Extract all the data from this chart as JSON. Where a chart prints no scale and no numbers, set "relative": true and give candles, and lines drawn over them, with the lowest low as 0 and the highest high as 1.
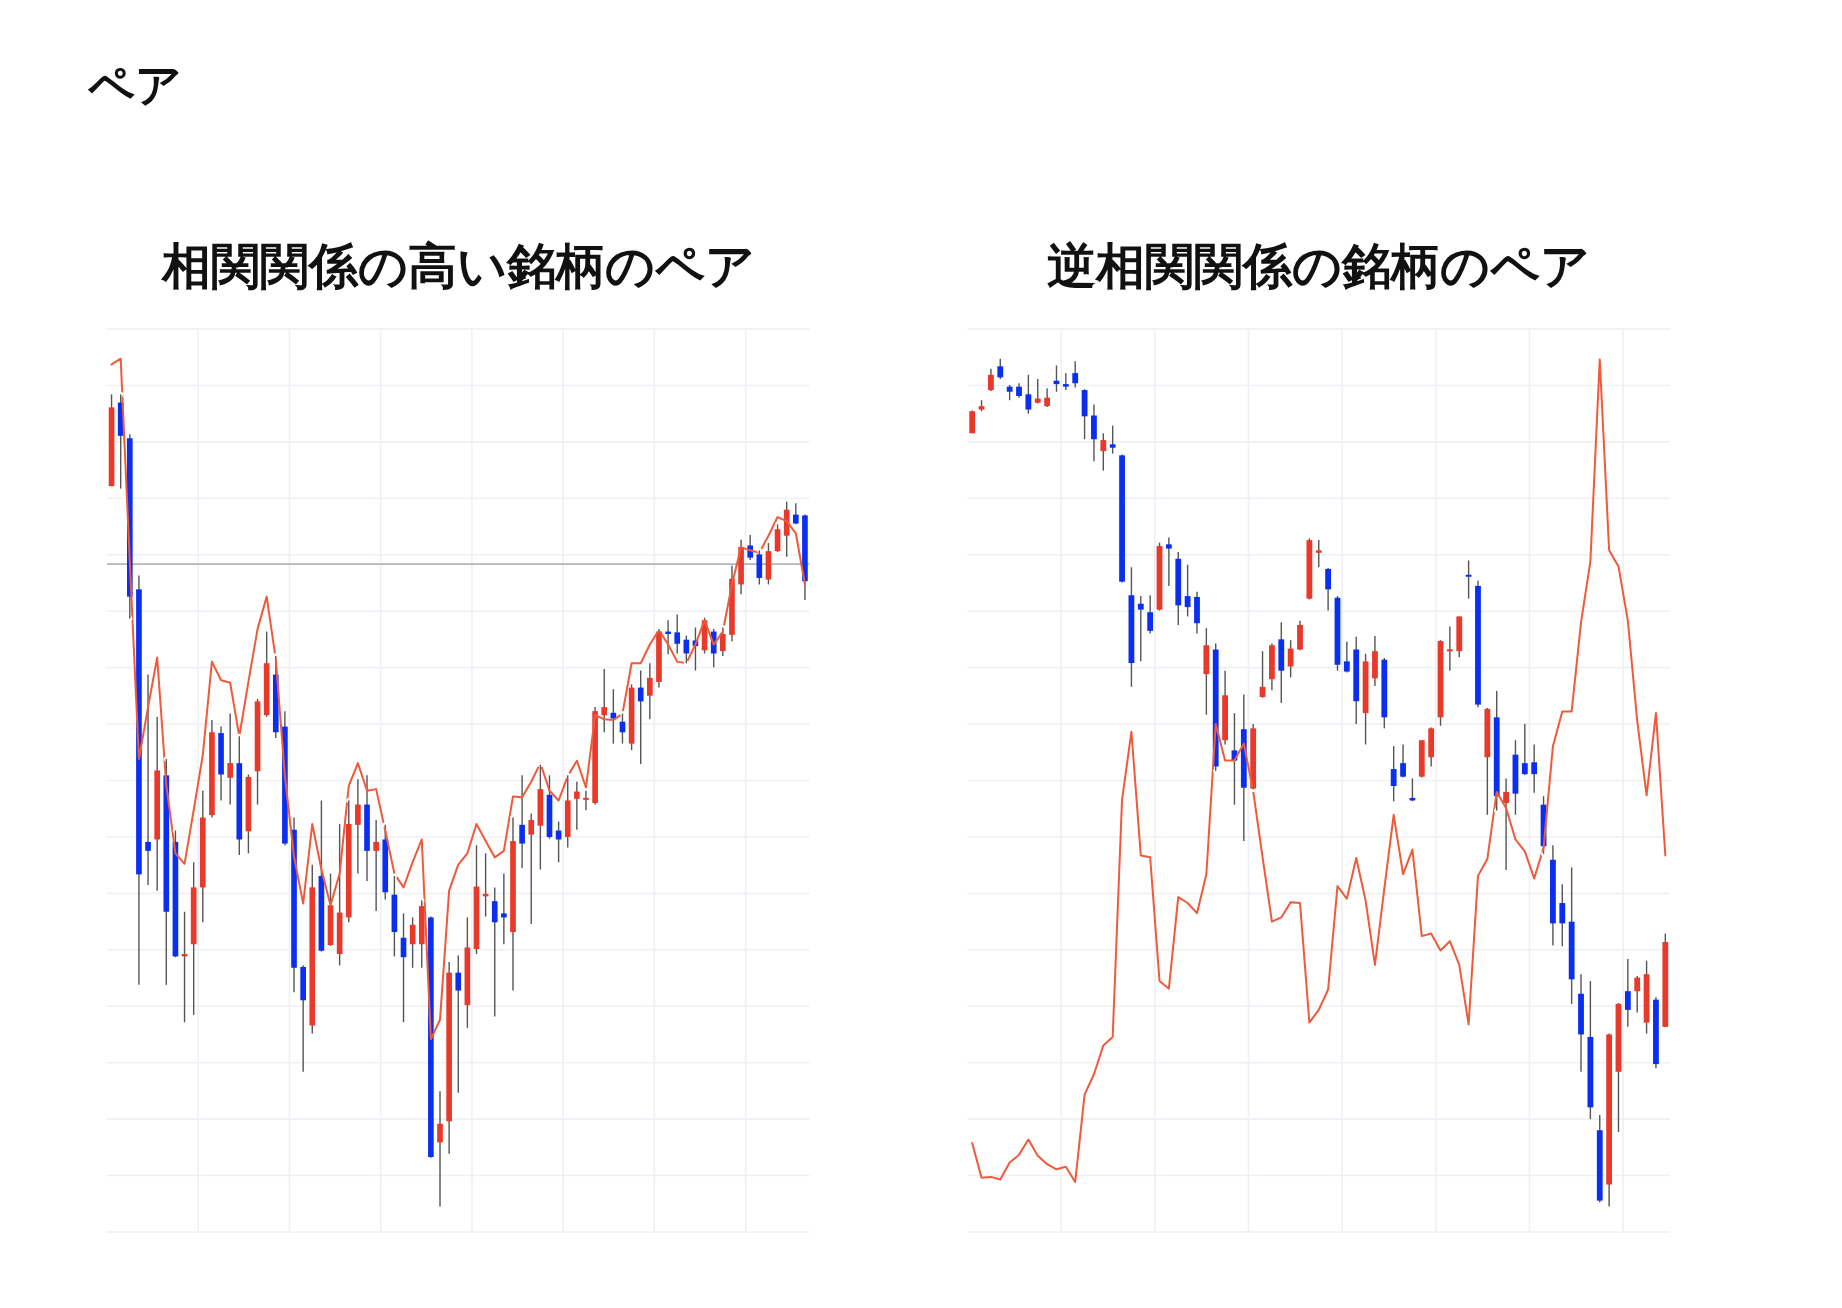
{
  "chart_data": [
    {
      "type": "other",
      "title": "ペア"
    },
    {
      "type": "candlestick",
      "title": "相関関係の高い銘柄のペア",
      "relative": true,
      "grid": true,
      "categories": [
        null,
        null,
        null,
        null,
        null,
        null,
        null,
        null,
        null,
        null,
        null,
        null,
        null,
        null,
        null,
        null,
        null,
        null,
        null,
        null,
        null,
        null,
        null,
        null,
        null,
        null,
        null,
        null,
        null,
        null,
        null,
        null,
        null,
        null,
        null,
        null,
        null,
        null,
        null,
        null,
        null,
        null,
        null,
        null,
        null,
        null,
        null,
        null,
        null,
        null,
        null,
        null,
        null,
        null,
        null,
        null,
        null,
        null,
        null,
        null,
        null,
        null,
        null,
        null,
        null,
        null,
        null,
        null,
        null,
        null,
        null,
        null,
        null,
        null,
        null,
        null,
        null
      ],
      "ohlc": [
        [
          0.887,
          1.0,
          0.887,
          0.984
        ],
        [
          0.99,
          1.0,
          0.884,
          0.949
        ],
        [
          0.946,
          0.951,
          0.724,
          0.751
        ],
        [
          0.76,
          0.777,
          0.273,
          0.409
        ],
        [
          0.449,
          0.655,
          0.396,
          0.438
        ],
        [
          0.452,
          0.603,
          0.389,
          0.537
        ],
        [
          0.531,
          0.551,
          0.273,
          0.363
        ],
        [
          0.449,
          0.463,
          0.307,
          0.308
        ],
        [
          0.308,
          0.363,
          0.227,
          0.311
        ],
        [
          0.323,
          0.424,
          0.236,
          0.393
        ],
        [
          0.393,
          0.512,
          0.35,
          0.479
        ],
        [
          0.482,
          0.599,
          0.479,
          0.584
        ],
        [
          0.583,
          0.591,
          0.5,
          0.532
        ],
        [
          0.528,
          0.607,
          0.495,
          0.546
        ],
        [
          0.546,
          0.579,
          0.433,
          0.452
        ],
        [
          0.462,
          0.532,
          0.435,
          0.529
        ],
        [
          0.536,
          0.625,
          0.495,
          0.622
        ],
        [
          0.605,
          0.708,
          0.603,
          0.669
        ],
        [
          0.655,
          0.678,
          0.577,
          0.584
        ],
        [
          0.591,
          0.61,
          0.445,
          0.447
        ],
        [
          0.464,
          0.479,
          0.264,
          0.294
        ],
        [
          0.295,
          0.297,
          0.166,
          0.254
        ],
        [
          0.223,
          0.421,
          0.213,
          0.393
        ],
        [
          0.407,
          0.5,
          0.314,
          0.315
        ],
        [
          0.322,
          0.41,
          0.321,
          0.371
        ],
        [
          0.311,
          0.471,
          0.297,
          0.362
        ],
        [
          0.356,
          0.5,
          0.35,
          0.471
        ],
        [
          0.47,
          0.526,
          0.41,
          0.495
        ],
        [
          0.495,
          0.531,
          0.401,
          0.438
        ],
        [
          0.438,
          0.476,
          0.364,
          0.449
        ],
        [
          0.452,
          0.47,
          0.378,
          0.387
        ],
        [
          0.384,
          0.407,
          0.308,
          0.338
        ],
        [
          0.331,
          0.361,
          0.227,
          0.307
        ],
        [
          0.323,
          0.356,
          0.294,
          0.347
        ],
        [
          0.323,
          0.377,
          0.294,
          0.37
        ],
        [
          0.356,
          0.357,
          0.06,
          0.061
        ],
        [
          0.079,
          0.142,
          0.0,
          0.102
        ],
        [
          0.105,
          0.301,
          0.065,
          0.288
        ],
        [
          0.288,
          0.309,
          0.14,
          0.266
        ],
        [
          0.248,
          0.356,
          0.22,
          0.319
        ],
        [
          0.317,
          0.445,
          0.311,
          0.394
        ],
        [
          0.382,
          0.435,
          0.357,
          0.385
        ],
        [
          0.376,
          0.393,
          0.234,
          0.35
        ],
        [
          0.361,
          0.41,
          0.323,
          0.356
        ],
        [
          0.338,
          0.479,
          0.266,
          0.45
        ],
        [
          0.47,
          0.531,
          0.417,
          0.447
        ],
        [
          0.458,
          0.484,
          0.348,
          0.476
        ],
        [
          0.469,
          0.544,
          0.415,
          0.514
        ],
        [
          0.507,
          0.531,
          0.453,
          0.455
        ],
        [
          0.463,
          0.474,
          0.424,
          0.452
        ],
        [
          0.455,
          0.531,
          0.442,
          0.5
        ],
        [
          0.502,
          0.523,
          0.464,
          0.511
        ],
        [
          0.501,
          0.512,
          0.488,
          0.503
        ],
        [
          0.497,
          0.615,
          0.495,
          0.61
        ],
        [
          0.605,
          0.662,
          0.584,
          0.615
        ],
        [
          0.608,
          0.637,
          0.57,
          0.601
        ],
        [
          0.597,
          0.607,
          0.57,
          0.584
        ],
        [
          0.57,
          0.643,
          0.562,
          0.639
        ],
        [
          0.639,
          0.66,
          0.545,
          0.622
        ],
        [
          0.629,
          0.669,
          0.6,
          0.651
        ],
        [
          0.646,
          0.711,
          0.639,
          0.708
        ],
        [
          0.708,
          0.722,
          0.68,
          0.705
        ],
        [
          0.707,
          0.729,
          0.681,
          0.693
        ],
        [
          0.698,
          0.703,
          0.669,
          0.681
        ],
        [
          0.697,
          0.713,
          0.66,
          0.69
        ],
        [
          0.685,
          0.725,
          0.681,
          0.722
        ],
        [
          0.708,
          0.711,
          0.664,
          0.681
        ],
        [
          0.684,
          0.713,
          0.678,
          0.705
        ],
        [
          0.704,
          0.789,
          0.696,
          0.773
        ],
        [
          0.766,
          0.821,
          0.754,
          0.812
        ],
        [
          0.814,
          0.827,
          0.796,
          0.799
        ],
        [
          0.803,
          0.808,
          0.766,
          0.774
        ],
        [
          0.772,
          0.817,
          0.766,
          0.807
        ],
        [
          0.807,
          0.84,
          0.806,
          0.834
        ],
        [
          0.826,
          0.868,
          0.8,
          0.858
        ],
        [
          0.852,
          0.866,
          0.84,
          0.841
        ],
        [
          0.851,
          0.852,
          0.747,
          0.77
        ]
      ],
      "colors": [
        "#e8392a",
        "#0b2ff0",
        "#0b2ff0",
        "#0b2ff0",
        "#0b2ff0",
        "#e8392a",
        "#0b2ff0",
        "#0b2ff0",
        "#e8392a",
        "#e8392a",
        "#e8392a",
        "#e8392a",
        "#0b2ff0",
        "#e8392a",
        "#0b2ff0",
        "#e8392a",
        "#e8392a",
        "#e8392a",
        "#0b2ff0",
        "#0b2ff0",
        "#0b2ff0",
        "#0b2ff0",
        "#e8392a",
        "#0b2ff0",
        "#e8392a",
        "#e8392a",
        "#e8392a",
        "#e8392a",
        "#0b2ff0",
        "#e8392a",
        "#0b2ff0",
        "#0b2ff0",
        "#0b2ff0",
        "#e8392a",
        "#e8392a",
        "#0b2ff0",
        "#e8392a",
        "#e8392a",
        "#0b2ff0",
        "#e8392a",
        "#e8392a",
        "#e8392a",
        "#0b2ff0",
        "#0b2ff0",
        "#e8392a",
        "#0b2ff0",
        "#e8392a",
        "#e8392a",
        "#0b2ff0",
        "#0b2ff0",
        "#e8392a",
        "#e8392a",
        "#e8392a",
        "#e8392a",
        "#e8392a",
        "#0b2ff0",
        "#0b2ff0",
        "#e8392a",
        "#0b2ff0",
        "#e8392a",
        "#e8392a",
        "#0b2ff0",
        "#0b2ff0",
        "#0b2ff0",
        "#0b2ff0",
        "#e8392a",
        "#0b2ff0",
        "#e8392a",
        "#e8392a",
        "#e8392a",
        "#0b2ff0",
        "#0b2ff0",
        "#e8392a",
        "#e8392a",
        "#e8392a",
        "#0b2ff0",
        "#0b2ff0"
      ],
      "ref_lines": [
        {
          "axis": "y",
          "value": 0.791,
          "color": "#b4b4bc"
        }
      ],
      "series": [
        {
          "type": "line",
          "color": "#ef5a3a",
          "values": [
            1.037,
            1.044,
            0.794,
            0.551,
            0.615,
            0.676,
            0.519,
            0.435,
            0.422,
            0.488,
            0.556,
            0.671,
            0.648,
            0.645,
            0.579,
            0.646,
            0.711,
            0.751,
            0.674,
            0.53,
            0.431,
            0.373,
            0.471,
            0.415,
            0.371,
            0.41,
            0.518,
            0.546,
            0.512,
            0.514,
            0.463,
            0.41,
            0.393,
            0.424,
            0.452,
            0.206,
            0.23,
            0.389,
            0.421,
            0.435,
            0.471,
            0.45,
            0.43,
            0.438,
            0.505,
            0.504,
            0.523,
            0.546,
            0.512,
            0.5,
            0.53,
            0.549,
            0.516,
            0.605,
            0.6,
            0.599,
            0.607,
            0.669,
            0.669,
            0.692,
            0.71,
            0.692,
            0.671,
            0.669,
            0.692,
            0.722,
            0.692,
            0.708,
            0.766,
            0.812,
            0.808,
            0.805,
            0.826,
            0.849,
            0.844,
            0.829,
            0.766
          ]
        }
      ]
    },
    {
      "type": "candlestick",
      "title": "逆相関関係の銘柄のペア",
      "relative": true,
      "grid": true,
      "categories": [
        null,
        null,
        null,
        null,
        null,
        null,
        null,
        null,
        null,
        null,
        null,
        null,
        null,
        null,
        null,
        null,
        null,
        null,
        null,
        null,
        null,
        null,
        null,
        null,
        null,
        null,
        null,
        null,
        null,
        null,
        null,
        null,
        null,
        null,
        null,
        null,
        null,
        null,
        null,
        null,
        null,
        null,
        null,
        null,
        null,
        null,
        null,
        null,
        null,
        null,
        null,
        null,
        null,
        null,
        null,
        null,
        null,
        null,
        null,
        null,
        null,
        null,
        null,
        null,
        null,
        null,
        null,
        null,
        null,
        null,
        null,
        null,
        null,
        null,
        null
      ],
      "ohlc": [
        [
          0.912,
          0.939,
          0.912,
          0.938
        ],
        [
          0.94,
          0.951,
          0.938,
          0.944
        ],
        [
          0.963,
          0.988,
          0.962,
          0.981
        ],
        [
          0.991,
          1.0,
          0.976,
          0.978
        ],
        [
          0.967,
          0.969,
          0.951,
          0.961
        ],
        [
          0.967,
          0.971,
          0.954,
          0.956
        ],
        [
          0.958,
          0.981,
          0.935,
          0.94
        ],
        [
          0.948,
          0.976,
          0.947,
          0.953
        ],
        [
          0.944,
          0.965,
          0.943,
          0.954
        ],
        [
          0.974,
          0.992,
          0.961,
          0.97
        ],
        [
          0.97,
          0.983,
          0.963,
          0.967
        ],
        [
          0.983,
          0.997,
          0.966,
          0.971
        ],
        [
          0.963,
          0.964,
          0.905,
          0.932
        ],
        [
          0.933,
          0.946,
          0.879,
          0.905
        ],
        [
          0.891,
          0.912,
          0.868,
          0.904
        ],
        [
          0.899,
          0.921,
          0.888,
          0.895
        ],
        [
          0.886,
          0.887,
          0.736,
          0.737
        ],
        [
          0.721,
          0.754,
          0.613,
          0.641
        ],
        [
          0.711,
          0.72,
          0.643,
          0.704
        ],
        [
          0.701,
          0.721,
          0.676,
          0.679
        ],
        [
          0.704,
          0.783,
          0.703,
          0.779
        ],
        [
          0.781,
          0.789,
          0.732,
          0.776
        ],
        [
          0.764,
          0.772,
          0.686,
          0.709
        ],
        [
          0.72,
          0.757,
          0.696,
          0.707
        ],
        [
          0.719,
          0.725,
          0.676,
          0.688
        ],
        [
          0.628,
          0.682,
          0.58,
          0.662
        ],
        [
          0.657,
          0.664,
          0.514,
          0.519
        ],
        [
          0.55,
          0.632,
          0.545,
          0.603
        ],
        [
          0.538,
          0.582,
          0.474,
          0.526
        ],
        [
          0.563,
          0.604,
          0.431,
          0.494
        ],
        [
          0.493,
          0.569,
          0.492,
          0.564
        ],
        [
          0.601,
          0.655,
          0.6,
          0.613
        ],
        [
          0.622,
          0.664,
          0.609,
          0.662
        ],
        [
          0.669,
          0.689,
          0.594,
          0.632
        ],
        [
          0.637,
          0.668,
          0.624,
          0.658
        ],
        [
          0.657,
          0.691,
          0.656,
          0.686
        ],
        [
          0.717,
          0.788,
          0.716,
          0.786
        ],
        [
          0.771,
          0.786,
          0.754,
          0.774
        ],
        [
          0.752,
          0.753,
          0.703,
          0.728
        ],
        [
          0.718,
          0.72,
          0.632,
          0.639
        ],
        [
          0.643,
          0.666,
          0.63,
          0.631
        ],
        [
          0.657,
          0.672,
          0.569,
          0.596
        ],
        [
          0.582,
          0.652,
          0.545,
          0.643
        ],
        [
          0.623,
          0.673,
          0.614,
          0.655
        ],
        [
          0.645,
          0.647,
          0.564,
          0.577
        ],
        [
          0.516,
          0.543,
          0.478,
          0.496
        ],
        [
          0.523,
          0.545,
          0.506,
          0.507
        ],
        [
          0.482,
          0.505,
          0.478,
          0.479
        ],
        [
          0.507,
          0.55,
          0.506,
          0.55
        ],
        [
          0.53,
          0.565,
          0.519,
          0.564
        ],
        [
          0.577,
          0.668,
          0.567,
          0.667
        ],
        [
          0.655,
          0.684,
          0.632,
          0.657
        ],
        [
          0.655,
          0.696,
          0.648,
          0.696
        ],
        [
          0.745,
          0.762,
          0.717,
          0.743
        ],
        [
          0.732,
          0.738,
          0.589,
          0.592
        ],
        [
          0.53,
          0.588,
          0.462,
          0.587
        ],
        [
          0.577,
          0.608,
          0.467,
          0.484
        ],
        [
          0.476,
          0.505,
          0.397,
          0.489
        ],
        [
          0.533,
          0.55,
          0.462,
          0.487
        ],
        [
          0.523,
          0.569,
          0.509,
          0.51
        ],
        [
          0.524,
          0.545,
          0.488,
          0.51
        ],
        [
          0.474,
          0.484,
          0.416,
          0.425
        ],
        [
          0.409,
          0.426,
          0.308,
          0.334
        ],
        [
          0.358,
          0.38,
          0.307,
          0.334
        ],
        [
          0.336,
          0.4,
          0.239,
          0.268
        ],
        [
          0.251,
          0.274,
          0.159,
          0.203
        ],
        [
          0.2,
          0.266,
          0.103,
          0.117
        ],
        [
          0.09,
          0.108,
          0.005,
          0.007
        ],
        [
          0.026,
          0.204,
          0.0,
          0.203
        ],
        [
          0.159,
          0.24,
          0.088,
          0.239
        ],
        [
          0.254,
          0.292,
          0.212,
          0.232
        ],
        [
          0.254,
          0.272,
          0.229,
          0.27
        ],
        [
          0.217,
          0.29,
          0.204,
          0.274
        ],
        [
          0.244,
          0.247,
          0.163,
          0.168
        ],
        [
          0.212,
          0.322,
          0.212,
          0.312
        ]
      ],
      "colors": [
        "#e8392a",
        "#e8392a",
        "#e8392a",
        "#0b2ff0",
        "#0b2ff0",
        "#0b2ff0",
        "#0b2ff0",
        "#e8392a",
        "#e8392a",
        "#0b2ff0",
        "#0b2ff0",
        "#0b2ff0",
        "#0b2ff0",
        "#0b2ff0",
        "#e8392a",
        "#0b2ff0",
        "#0b2ff0",
        "#0b2ff0",
        "#0b2ff0",
        "#0b2ff0",
        "#e8392a",
        "#0b2ff0",
        "#0b2ff0",
        "#0b2ff0",
        "#0b2ff0",
        "#e8392a",
        "#0b2ff0",
        "#e8392a",
        "#0b2ff0",
        "#0b2ff0",
        "#e8392a",
        "#e8392a",
        "#e8392a",
        "#0b2ff0",
        "#e8392a",
        "#e8392a",
        "#e8392a",
        "#e8392a",
        "#0b2ff0",
        "#0b2ff0",
        "#0b2ff0",
        "#0b2ff0",
        "#e8392a",
        "#e8392a",
        "#0b2ff0",
        "#0b2ff0",
        "#0b2ff0",
        "#0b2ff0",
        "#e8392a",
        "#e8392a",
        "#e8392a",
        "#e8392a",
        "#e8392a",
        "#0b2ff0",
        "#0b2ff0",
        "#e8392a",
        "#0b2ff0",
        "#e8392a",
        "#0b2ff0",
        "#0b2ff0",
        "#0b2ff0",
        "#0b2ff0",
        "#0b2ff0",
        "#0b2ff0",
        "#0b2ff0",
        "#0b2ff0",
        "#0b2ff0",
        "#0b2ff0",
        "#e8392a",
        "#e8392a",
        "#0b2ff0",
        "#e8392a",
        "#e8392a",
        "#0b2ff0",
        "#e8392a"
      ],
      "series": [
        {
          "type": "line",
          "color": "#ef5a3a",
          "values": [
            0.075,
            0.034,
            0.035,
            0.032,
            0.052,
            0.061,
            0.079,
            0.06,
            0.05,
            0.044,
            0.047,
            0.029,
            0.132,
            0.156,
            0.19,
            0.2,
            0.48,
            0.56,
            0.414,
            0.412,
            0.266,
            0.257,
            0.365,
            0.358,
            0.346,
            0.392,
            0.569,
            0.526,
            0.526,
            0.546,
            0.49,
            0.412,
            0.336,
            0.341,
            0.359,
            0.358,
            0.217,
            0.232,
            0.256,
            0.378,
            0.363,
            0.411,
            0.361,
            0.285,
            0.375,
            0.462,
            0.392,
            0.421,
            0.319,
            0.322,
            0.302,
            0.313,
            0.285,
            0.215,
            0.39,
            0.41,
            0.489,
            0.47,
            0.433,
            0.419,
            0.387,
            0.423,
            0.543,
            0.584,
            0.584,
            0.689,
            0.761,
            0.999,
            0.774,
            0.755,
            0.691,
            0.573,
            0.485,
            0.582,
            0.414
          ]
        }
      ]
    }
  ]
}
